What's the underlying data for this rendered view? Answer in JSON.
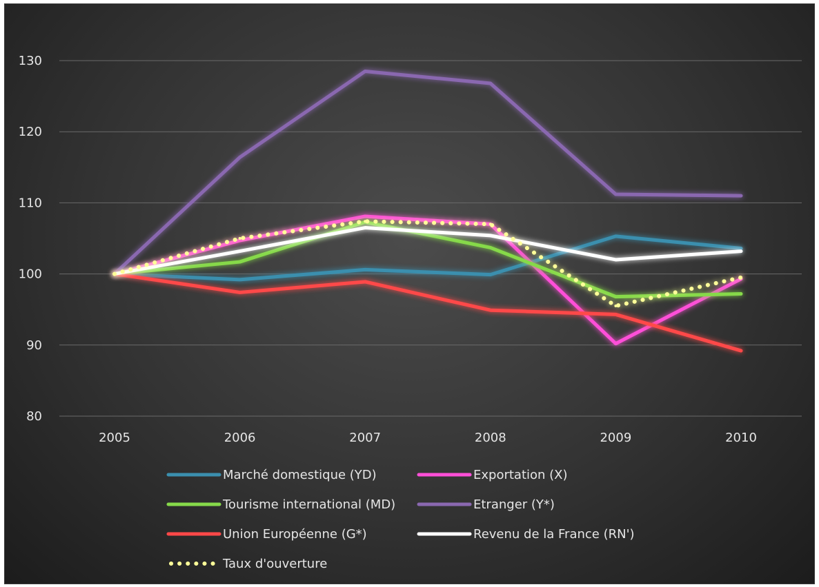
{
  "chart_data": {
    "type": "line",
    "title": "",
    "xlabel": "",
    "ylabel": "",
    "x": [
      "2005",
      "2006",
      "2007",
      "2008",
      "2009",
      "2010"
    ],
    "ylim": [
      80,
      130
    ],
    "yticks": [
      "80",
      "90",
      "100",
      "110",
      "120",
      "130"
    ],
    "grid": true,
    "legend_position": "bottom",
    "series": [
      {
        "name": "Marché domestique (YD)",
        "values": [
          100,
          99.2,
          100.6,
          99.9,
          105.3,
          103.6
        ],
        "color": "#3b8fae",
        "dashed": false
      },
      {
        "name": "Exportation (X)",
        "values": [
          100,
          104.7,
          108.1,
          107,
          90.2,
          99.3
        ],
        "color": "#ff4fd8",
        "dashed": false
      },
      {
        "name": "Tourisme international (MD)",
        "values": [
          100,
          101.7,
          107.3,
          103.7,
          96.8,
          97.2
        ],
        "color": "#86d94a",
        "dashed": false
      },
      {
        "name": "Etranger (Y*)",
        "values": [
          100,
          116.4,
          128.5,
          126.8,
          111.2,
          111
        ],
        "color": "#8a68b0",
        "dashed": false
      },
      {
        "name": "Union Européenne (G*)",
        "values": [
          100,
          97.4,
          98.9,
          94.9,
          94.3,
          89.2
        ],
        "color": "#ff4848",
        "dashed": false
      },
      {
        "name": "Revenu de la France (RN')",
        "values": [
          100,
          103.2,
          106.5,
          105.4,
          102,
          103.2
        ],
        "color": "#ffffff",
        "dashed": false
      },
      {
        "name": "Taux d'ouverture",
        "values": [
          100,
          105,
          107.4,
          107,
          95.5,
          99.5
        ],
        "color": "#ffff99",
        "dashed": true
      }
    ]
  }
}
